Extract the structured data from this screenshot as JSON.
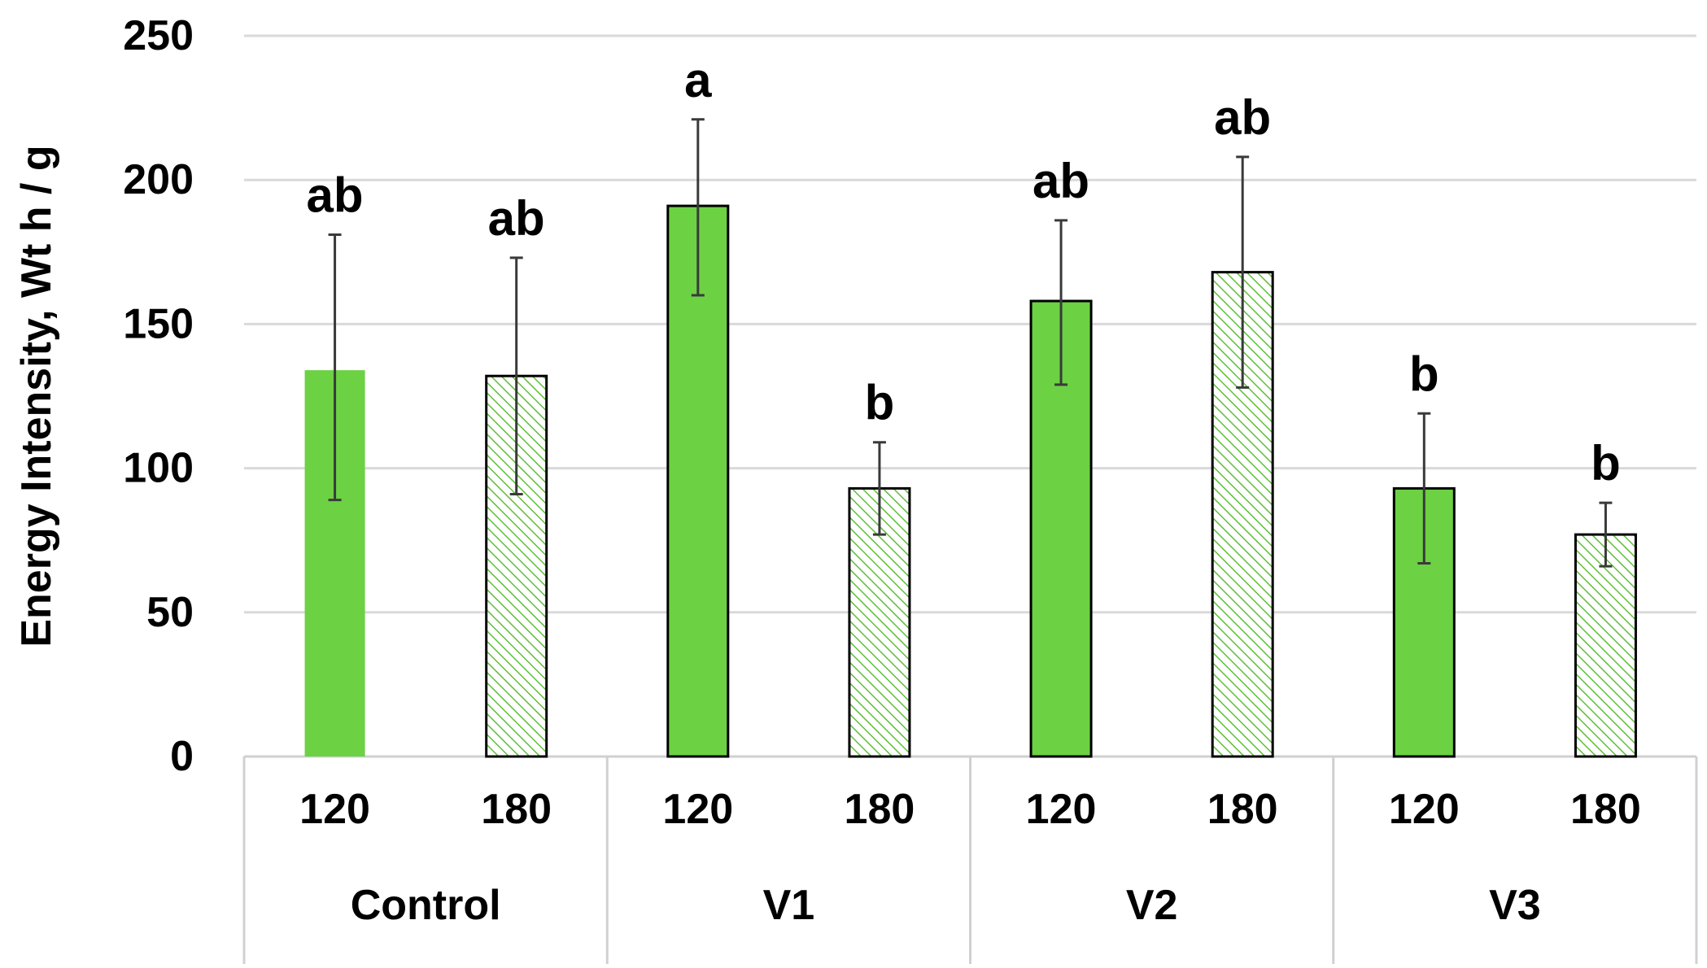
{
  "chart_data": {
    "type": "bar",
    "title": "",
    "xlabel": "",
    "ylabel": "Energy Intensity, Wt h / g",
    "ylim": [
      0,
      250
    ],
    "y_ticks": [
      0,
      50,
      100,
      150,
      200,
      250
    ],
    "y_tick_labels": [
      "0",
      "50",
      "100",
      "150",
      "200",
      "250"
    ],
    "grid": true,
    "groups": [
      "Control",
      "V1",
      "V2",
      "V3"
    ],
    "categories": [
      "120",
      "180"
    ],
    "bars": [
      {
        "group": "Control",
        "category": "120",
        "value": 134,
        "error_low": 89,
        "error_high": 181,
        "letter": "ab",
        "style": "solid"
      },
      {
        "group": "Control",
        "category": "180",
        "value": 132,
        "error_low": 91,
        "error_high": 173,
        "letter": "ab",
        "style": "hatched"
      },
      {
        "group": "V1",
        "category": "120",
        "value": 191,
        "error_low": 160,
        "error_high": 221,
        "letter": "a",
        "style": "solid"
      },
      {
        "group": "V1",
        "category": "180",
        "value": 93,
        "error_low": 77,
        "error_high": 109,
        "letter": "b",
        "style": "hatched"
      },
      {
        "group": "V2",
        "category": "120",
        "value": 158,
        "error_low": 129,
        "error_high": 186,
        "letter": "ab",
        "style": "solid"
      },
      {
        "group": "V2",
        "category": "180",
        "value": 168,
        "error_low": 128,
        "error_high": 208,
        "letter": "ab",
        "style": "hatched"
      },
      {
        "group": "V3",
        "category": "120",
        "value": 93,
        "error_low": 67,
        "error_high": 119,
        "letter": "b",
        "style": "solid"
      },
      {
        "group": "V3",
        "category": "180",
        "value": 77,
        "error_low": 66,
        "error_high": 88,
        "letter": "b",
        "style": "hatched"
      }
    ],
    "colors": {
      "solid_fill": "#6cd143",
      "hatch_line": "#5fbf3a",
      "hatch_background": "#ffffff",
      "bar_border": "#000000",
      "error_bar": "#3a3a3a",
      "gridline": "#d9d9d9",
      "axis": "#d0d0d0"
    }
  }
}
